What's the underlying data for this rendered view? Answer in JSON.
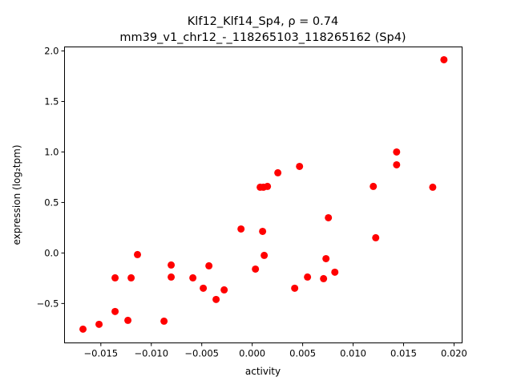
{
  "chart_data": {
    "type": "scatter",
    "title_line1": "Klf12_Klf14_Sp4, ρ = 0.74",
    "title_line2": "mm39_v1_chr12_-_118265103_118265162 (Sp4)",
    "xlabel": "activity",
    "ylabel": "expression (log₂tpm)",
    "xlim": [
      -0.0186,
      0.0208
    ],
    "ylim": [
      -0.89,
      2.04
    ],
    "xticks": [
      -0.015,
      -0.01,
      -0.005,
      0.0,
      0.005,
      0.01,
      0.015,
      0.02
    ],
    "xtick_labels": [
      "−0.015",
      "−0.010",
      "−0.005",
      "0.000",
      "0.005",
      "0.010",
      "0.015",
      "0.020"
    ],
    "yticks": [
      -0.5,
      0.0,
      0.5,
      1.0,
      1.5,
      2.0
    ],
    "ytick_labels": [
      "−0.5",
      "0.0",
      "0.5",
      "1.0",
      "1.5",
      "2.0"
    ],
    "grid": false,
    "marker_color": "#ff0000",
    "points": [
      [
        -0.01677,
        -0.754
      ],
      [
        -0.01518,
        -0.706
      ],
      [
        -0.01359,
        -0.246
      ],
      [
        -0.01359,
        -0.579
      ],
      [
        -0.01232,
        -0.667
      ],
      [
        -0.012,
        -0.246
      ],
      [
        -0.01137,
        -0.016
      ],
      [
        -0.00874,
        -0.675
      ],
      [
        -0.00803,
        -0.119
      ],
      [
        -0.00803,
        -0.238
      ],
      [
        -0.00588,
        -0.246
      ],
      [
        -0.00485,
        -0.349
      ],
      [
        -0.00429,
        -0.127
      ],
      [
        -0.00358,
        -0.46
      ],
      [
        -0.00278,
        -0.365
      ],
      [
        -0.00111,
        0.238
      ],
      [
        0.00032,
        -0.159
      ],
      [
        0.00079,
        0.651
      ],
      [
        0.00111,
        0.651
      ],
      [
        0.00151,
        0.659
      ],
      [
        0.00103,
        0.214
      ],
      [
        0.00119,
        -0.024
      ],
      [
        0.00254,
        0.794
      ],
      [
        0.00421,
        -0.349
      ],
      [
        0.00469,
        0.857
      ],
      [
        0.00548,
        -0.238
      ],
      [
        0.00707,
        -0.254
      ],
      [
        0.00731,
        -0.056
      ],
      [
        0.00755,
        0.349
      ],
      [
        0.00819,
        -0.19
      ],
      [
        0.012,
        0.659
      ],
      [
        0.01224,
        0.151
      ],
      [
        0.01431,
        1.0
      ],
      [
        0.01431,
        0.873
      ],
      [
        0.01789,
        0.651
      ],
      [
        0.019,
        1.913
      ]
    ]
  }
}
